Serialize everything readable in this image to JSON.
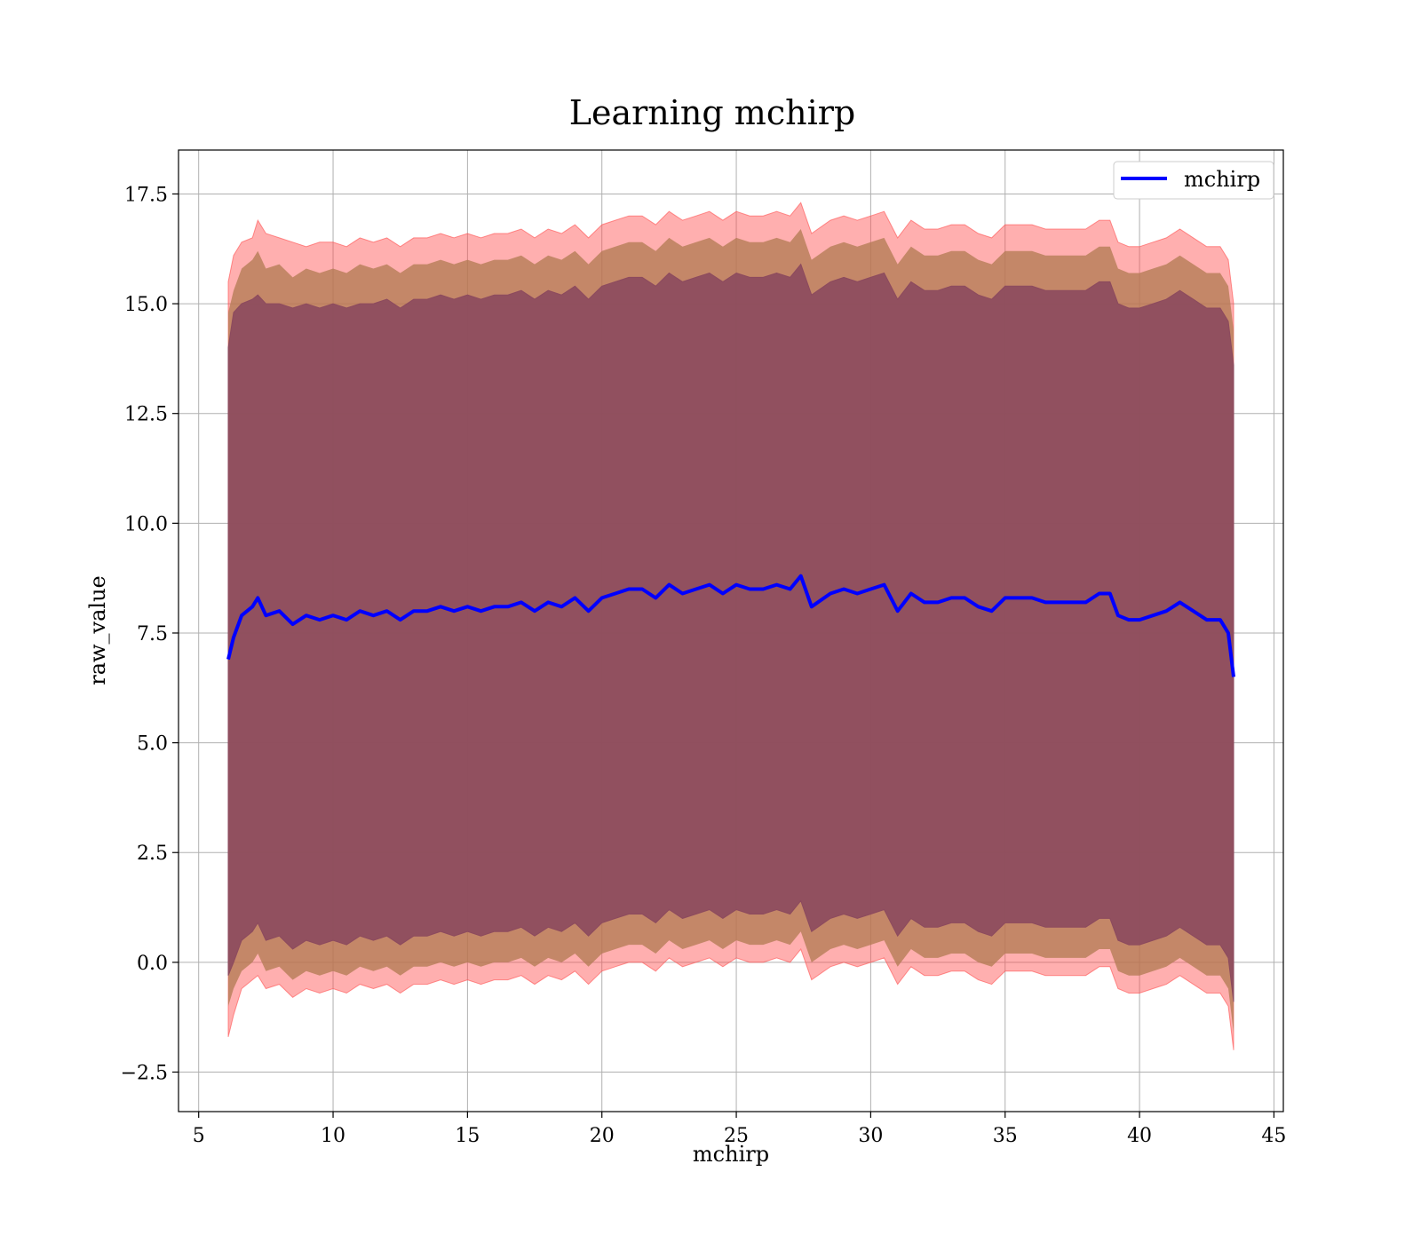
{
  "chart_data": {
    "type": "line",
    "title": "Learning mchirp",
    "xlabel": "mchirp",
    "ylabel": "raw_value",
    "xlim": [
      4.25,
      45.35
    ],
    "ylim": [
      -3.4,
      18.5
    ],
    "xticks": [
      5,
      10,
      15,
      20,
      25,
      30,
      35,
      40,
      45
    ],
    "xtick_labels": [
      "5",
      "10",
      "15",
      "20",
      "25",
      "30",
      "35",
      "40",
      "45"
    ],
    "yticks": [
      -2.5,
      0.0,
      2.5,
      5.0,
      7.5,
      10.0,
      12.5,
      15.0,
      17.5
    ],
    "ytick_labels": [
      "−2.5",
      "0.0",
      "2.5",
      "5.0",
      "7.5",
      "10.0",
      "12.5",
      "15.0",
      "17.5"
    ],
    "grid": true,
    "legend": {
      "position": "top-right",
      "entries": [
        "mchirp"
      ]
    },
    "colors": {
      "line": "#0000ff",
      "band_outer": "#ff4d4d",
      "band_middle": "#b07a50",
      "band_inner": "#8c4a5e",
      "grid": "#b0b0b0"
    },
    "series": [
      {
        "name": "mchirp",
        "x": [
          6.1,
          6.3,
          6.6,
          7.0,
          7.2,
          7.5,
          8.0,
          8.5,
          9.0,
          9.5,
          10.0,
          10.5,
          11.0,
          11.5,
          12.0,
          12.5,
          13.0,
          13.5,
          14.0,
          14.5,
          15.0,
          15.5,
          16.0,
          16.5,
          17.0,
          17.5,
          18.0,
          18.5,
          19.0,
          19.5,
          20.0,
          20.5,
          21.0,
          21.5,
          22.0,
          22.5,
          23.0,
          23.5,
          24.0,
          24.5,
          25.0,
          25.5,
          26.0,
          26.5,
          27.0,
          27.4,
          27.8,
          28.5,
          29.0,
          29.5,
          30.0,
          30.5,
          31.0,
          31.5,
          32.0,
          32.5,
          33.0,
          33.5,
          34.0,
          34.5,
          35.0,
          35.5,
          36.0,
          36.5,
          37.0,
          37.5,
          38.0,
          38.5,
          38.9,
          39.2,
          39.6,
          40.0,
          40.5,
          41.0,
          41.5,
          42.0,
          42.5,
          43.0,
          43.3,
          43.5
        ],
        "y": [
          6.9,
          7.4,
          7.9,
          8.1,
          8.3,
          7.9,
          8.0,
          7.7,
          7.9,
          7.8,
          7.9,
          7.8,
          8.0,
          7.9,
          8.0,
          7.8,
          8.0,
          8.0,
          8.1,
          8.0,
          8.1,
          8.0,
          8.1,
          8.1,
          8.2,
          8.0,
          8.2,
          8.1,
          8.3,
          8.0,
          8.3,
          8.4,
          8.5,
          8.5,
          8.3,
          8.6,
          8.4,
          8.5,
          8.6,
          8.4,
          8.6,
          8.5,
          8.5,
          8.6,
          8.5,
          8.8,
          8.1,
          8.4,
          8.5,
          8.4,
          8.5,
          8.6,
          8.0,
          8.4,
          8.2,
          8.2,
          8.3,
          8.3,
          8.1,
          8.0,
          8.3,
          8.3,
          8.3,
          8.2,
          8.2,
          8.2,
          8.2,
          8.4,
          8.4,
          7.9,
          7.8,
          7.8,
          7.9,
          8.0,
          8.2,
          8.0,
          7.8,
          7.8,
          7.5,
          6.5
        ],
        "upper_outer": [
          15.5,
          16.1,
          16.4,
          16.5,
          16.9,
          16.6,
          16.5,
          16.4,
          16.3,
          16.4,
          16.4,
          16.3,
          16.5,
          16.4,
          16.5,
          16.3,
          16.5,
          16.5,
          16.6,
          16.5,
          16.6,
          16.5,
          16.6,
          16.6,
          16.7,
          16.5,
          16.7,
          16.6,
          16.8,
          16.5,
          16.8,
          16.9,
          17.0,
          17.0,
          16.8,
          17.1,
          16.9,
          17.0,
          17.1,
          16.9,
          17.1,
          17.0,
          17.0,
          17.1,
          17.0,
          17.3,
          16.6,
          16.9,
          17.0,
          16.9,
          17.0,
          17.1,
          16.5,
          16.9,
          16.7,
          16.7,
          16.8,
          16.8,
          16.6,
          16.5,
          16.8,
          16.8,
          16.8,
          16.7,
          16.7,
          16.7,
          16.7,
          16.9,
          16.9,
          16.4,
          16.3,
          16.3,
          16.4,
          16.5,
          16.7,
          16.5,
          16.3,
          16.3,
          16.0,
          15.0
        ],
        "upper_middle": [
          14.8,
          15.3,
          15.8,
          16.0,
          16.2,
          15.8,
          15.9,
          15.6,
          15.8,
          15.7,
          15.8,
          15.7,
          15.9,
          15.8,
          15.9,
          15.7,
          15.9,
          15.9,
          16.0,
          15.9,
          16.0,
          15.9,
          16.0,
          16.0,
          16.1,
          15.9,
          16.1,
          16.0,
          16.2,
          15.9,
          16.2,
          16.3,
          16.4,
          16.4,
          16.2,
          16.5,
          16.3,
          16.4,
          16.5,
          16.3,
          16.5,
          16.4,
          16.4,
          16.5,
          16.4,
          16.7,
          16.0,
          16.3,
          16.4,
          16.3,
          16.4,
          16.5,
          15.9,
          16.3,
          16.1,
          16.1,
          16.2,
          16.2,
          16.0,
          15.9,
          16.2,
          16.2,
          16.2,
          16.1,
          16.1,
          16.1,
          16.1,
          16.3,
          16.3,
          15.8,
          15.7,
          15.7,
          15.8,
          15.9,
          16.1,
          15.9,
          15.7,
          15.7,
          15.4,
          14.4
        ],
        "upper_inner": [
          14.0,
          14.8,
          15.0,
          15.1,
          15.2,
          15.0,
          15.0,
          14.9,
          15.0,
          14.9,
          15.0,
          14.9,
          15.0,
          15.0,
          15.1,
          14.9,
          15.1,
          15.1,
          15.2,
          15.1,
          15.2,
          15.1,
          15.2,
          15.2,
          15.3,
          15.1,
          15.3,
          15.2,
          15.4,
          15.1,
          15.4,
          15.5,
          15.6,
          15.6,
          15.4,
          15.7,
          15.5,
          15.6,
          15.7,
          15.5,
          15.7,
          15.6,
          15.6,
          15.7,
          15.6,
          15.9,
          15.2,
          15.5,
          15.6,
          15.5,
          15.6,
          15.7,
          15.1,
          15.5,
          15.3,
          15.3,
          15.4,
          15.4,
          15.2,
          15.1,
          15.4,
          15.4,
          15.4,
          15.3,
          15.3,
          15.3,
          15.3,
          15.5,
          15.5,
          15.0,
          14.9,
          14.9,
          15.0,
          15.1,
          15.3,
          15.1,
          14.9,
          14.9,
          14.6,
          13.6
        ],
        "lower_inner": [
          -0.3,
          0.0,
          0.5,
          0.7,
          0.9,
          0.5,
          0.6,
          0.3,
          0.5,
          0.4,
          0.5,
          0.4,
          0.6,
          0.5,
          0.6,
          0.4,
          0.6,
          0.6,
          0.7,
          0.6,
          0.7,
          0.6,
          0.7,
          0.7,
          0.8,
          0.6,
          0.8,
          0.7,
          0.9,
          0.6,
          0.9,
          1.0,
          1.1,
          1.1,
          0.9,
          1.2,
          1.0,
          1.1,
          1.2,
          1.0,
          1.2,
          1.1,
          1.1,
          1.2,
          1.1,
          1.4,
          0.7,
          1.0,
          1.1,
          1.0,
          1.1,
          1.2,
          0.6,
          1.0,
          0.8,
          0.8,
          0.9,
          0.9,
          0.7,
          0.6,
          0.9,
          0.9,
          0.9,
          0.8,
          0.8,
          0.8,
          0.8,
          1.0,
          1.0,
          0.5,
          0.4,
          0.4,
          0.5,
          0.6,
          0.8,
          0.6,
          0.4,
          0.4,
          0.1,
          -0.9
        ],
        "lower_middle": [
          -1.0,
          -0.6,
          -0.2,
          0.0,
          0.2,
          -0.2,
          -0.1,
          -0.4,
          -0.2,
          -0.3,
          -0.2,
          -0.3,
          -0.1,
          -0.2,
          -0.1,
          -0.3,
          -0.1,
          -0.1,
          0.0,
          -0.1,
          0.0,
          -0.1,
          0.0,
          0.0,
          0.1,
          -0.1,
          0.1,
          0.0,
          0.2,
          -0.1,
          0.2,
          0.3,
          0.4,
          0.4,
          0.2,
          0.5,
          0.3,
          0.4,
          0.5,
          0.3,
          0.5,
          0.4,
          0.4,
          0.5,
          0.4,
          0.7,
          0.0,
          0.3,
          0.4,
          0.3,
          0.4,
          0.5,
          -0.1,
          0.3,
          0.1,
          0.1,
          0.2,
          0.2,
          0.0,
          -0.1,
          0.2,
          0.2,
          0.2,
          0.1,
          0.1,
          0.1,
          0.1,
          0.3,
          0.3,
          -0.2,
          -0.3,
          -0.3,
          -0.2,
          -0.1,
          0.1,
          -0.1,
          -0.3,
          -0.3,
          -0.6,
          -1.6
        ],
        "lower_outer": [
          -1.7,
          -1.2,
          -0.6,
          -0.4,
          -0.3,
          -0.6,
          -0.5,
          -0.8,
          -0.6,
          -0.7,
          -0.6,
          -0.7,
          -0.5,
          -0.6,
          -0.5,
          -0.7,
          -0.5,
          -0.5,
          -0.4,
          -0.5,
          -0.4,
          -0.5,
          -0.4,
          -0.4,
          -0.3,
          -0.5,
          -0.3,
          -0.4,
          -0.2,
          -0.5,
          -0.2,
          -0.1,
          0.0,
          0.0,
          -0.2,
          0.1,
          -0.1,
          0.0,
          0.1,
          -0.1,
          0.1,
          0.0,
          0.0,
          0.1,
          0.0,
          0.3,
          -0.4,
          -0.1,
          0.0,
          -0.1,
          0.0,
          0.1,
          -0.5,
          -0.1,
          -0.3,
          -0.3,
          -0.2,
          -0.2,
          -0.4,
          -0.5,
          -0.2,
          -0.2,
          -0.2,
          -0.3,
          -0.3,
          -0.3,
          -0.3,
          -0.1,
          -0.1,
          -0.6,
          -0.7,
          -0.7,
          -0.6,
          -0.5,
          -0.3,
          -0.5,
          -0.7,
          -0.7,
          -1.0,
          -2.0
        ]
      }
    ]
  }
}
